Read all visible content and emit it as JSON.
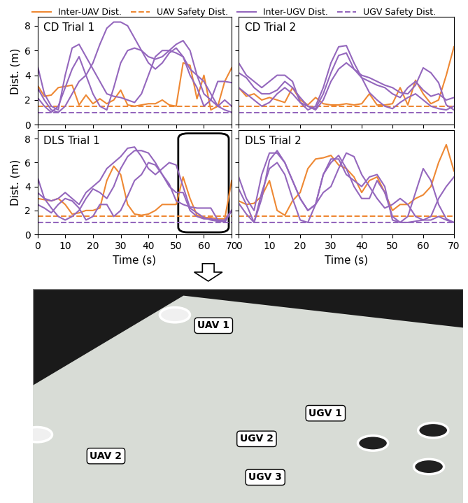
{
  "chart_data": [
    {
      "type": "line",
      "title": "CD Trial 1",
      "y_label": "Dist. (m)",
      "tick_labels": "y",
      "x": [
        0,
        2.5,
        5,
        7.5,
        10,
        12.5,
        15,
        17.5,
        20,
        22.5,
        25,
        27.5,
        30,
        32.5,
        35,
        37.5,
        40,
        42.5,
        45,
        47.5,
        50,
        52.5,
        55,
        57.5,
        60,
        62.5,
        65,
        67.5,
        70
      ],
      "xlim": [
        0,
        70
      ],
      "xticks": [
        0,
        10,
        20,
        30,
        40,
        50,
        60,
        70
      ],
      "ylim": [
        0,
        8.7
      ],
      "yticks": [
        0,
        2,
        4,
        6,
        8
      ],
      "series": [
        {
          "name": "Inter-UAV Dist.",
          "color": "#ee8833",
          "line_style": "solid",
          "values": [
            3.2,
            2.3,
            2.4,
            3.0,
            3.1,
            3.2,
            1.6,
            2.4,
            1.7,
            2.1,
            1.7,
            2.0,
            2.8,
            1.6,
            1.5,
            1.6,
            1.7,
            1.7,
            2.0,
            1.6,
            1.5,
            5.0,
            4.8,
            2.1,
            4.0,
            1.2,
            1.5,
            3.5,
            4.6
          ]
        },
        {
          "name": "UAV Safety Dist.",
          "color": "#ee8833",
          "line_style": "dashed",
          "x": [
            0,
            70
          ],
          "values": [
            1.5,
            1.5
          ]
        },
        {
          "name": "Inter-UGV Dist.",
          "color": "#9467bd",
          "line_style": "solid",
          "values": [
            4.8,
            2.5,
            1.5,
            1.2,
            4.0,
            6.2,
            6.5,
            5.5,
            4.5,
            3.5,
            2.5,
            2.3,
            2.2,
            2.0,
            1.8,
            2.5,
            4.0,
            5.5,
            6.0,
            6.0,
            5.8,
            5.5,
            4.0,
            3.0,
            1.5,
            2.0,
            3.5,
            3.5,
            3.4
          ]
        },
        {
          "name": "Inter-UGV Dist.",
          "color": "#9467bd",
          "line_style": "solid",
          "values": [
            3.0,
            2.0,
            1.2,
            1.0,
            1.5,
            2.5,
            3.5,
            4.0,
            5.0,
            6.5,
            7.8,
            8.3,
            8.3,
            8.0,
            7.0,
            6.0,
            5.5,
            5.3,
            5.5,
            6.0,
            6.5,
            6.8,
            6.0,
            4.0,
            2.5,
            2.0,
            1.5,
            1.2,
            1.0
          ]
        },
        {
          "name": "Inter-UGV Dist.",
          "color": "#9467bd",
          "line_style": "solid",
          "values": [
            2.2,
            1.5,
            1.0,
            1.5,
            3.0,
            4.5,
            5.5,
            4.0,
            2.5,
            1.5,
            1.2,
            3.0,
            5.0,
            6.0,
            6.2,
            6.0,
            5.0,
            4.5,
            5.0,
            5.8,
            6.2,
            5.5,
            4.5,
            4.0,
            3.5,
            2.5,
            1.5,
            2.0,
            1.5
          ]
        },
        {
          "name": "UGV Safety Dist.",
          "color": "#9467bd",
          "line_style": "dashed",
          "x": [
            0,
            70
          ],
          "values": [
            1.0,
            1.0
          ]
        }
      ]
    },
    {
      "type": "line",
      "title": "CD Trial 2",
      "tick_labels": false,
      "x": [
        0,
        2.5,
        5,
        7.5,
        10,
        12.5,
        15,
        17.5,
        20,
        22.5,
        25,
        27.5,
        30,
        32.5,
        35,
        37.5,
        40,
        42.5,
        45,
        47.5,
        50,
        52.5,
        55,
        57.5,
        60,
        62.5,
        65,
        67.5,
        70
      ],
      "xlim": [
        0,
        70
      ],
      "xticks": [
        0,
        10,
        20,
        30,
        40,
        50,
        60,
        70
      ],
      "ylim": [
        0,
        8.7
      ],
      "yticks": [
        0,
        2,
        4,
        6,
        8
      ],
      "series": [
        {
          "name": "Inter-UAV Dist.",
          "color": "#ee8833",
          "line_style": "solid",
          "values": [
            3.0,
            2.3,
            2.5,
            2.0,
            2.2,
            2.0,
            1.8,
            3.0,
            2.0,
            1.6,
            2.2,
            1.7,
            1.6,
            1.6,
            1.7,
            1.6,
            1.7,
            2.5,
            1.6,
            1.6,
            1.7,
            3.0,
            1.6,
            3.6,
            2.5,
            1.7,
            2.0,
            4.0,
            6.3
          ]
        },
        {
          "name": "UAV Safety Dist.",
          "color": "#ee8833",
          "line_style": "dashed",
          "x": [
            0,
            70
          ],
          "values": [
            1.5,
            1.5
          ]
        },
        {
          "name": "Inter-UGV Dist.",
          "color": "#9467bd",
          "line_style": "solid",
          "values": [
            5.0,
            4.0,
            3.5,
            3.0,
            3.5,
            4.0,
            4.0,
            3.5,
            1.8,
            1.2,
            1.5,
            3.0,
            5.0,
            6.3,
            6.4,
            5.0,
            3.8,
            3.5,
            3.2,
            3.0,
            2.5,
            2.2,
            3.0,
            3.5,
            2.8,
            2.3,
            2.5,
            2.0,
            2.2
          ]
        },
        {
          "name": "Inter-UGV Dist.",
          "color": "#9467bd",
          "line_style": "solid",
          "values": [
            4.2,
            3.8,
            3.0,
            2.5,
            2.5,
            2.8,
            3.5,
            3.0,
            2.2,
            1.5,
            1.3,
            2.5,
            4.2,
            5.6,
            5.8,
            4.5,
            4.0,
            3.8,
            3.5,
            3.2,
            3.0,
            2.6,
            2.5,
            3.2,
            4.6,
            4.2,
            3.4,
            1.6,
            1.2
          ]
        },
        {
          "name": "Inter-UGV Dist.",
          "color": "#9467bd",
          "line_style": "solid",
          "values": [
            3.0,
            2.5,
            2.0,
            1.5,
            1.8,
            2.5,
            3.0,
            2.5,
            1.8,
            1.5,
            1.2,
            2.0,
            3.5,
            4.5,
            5.0,
            4.5,
            3.8,
            2.6,
            2.0,
            1.5,
            1.3,
            1.8,
            2.2,
            2.5,
            2.0,
            1.5,
            1.3,
            1.2,
            1.5
          ]
        },
        {
          "name": "UGV Safety Dist.",
          "color": "#9467bd",
          "line_style": "dashed",
          "x": [
            0,
            70
          ],
          "values": [
            1.0,
            1.0
          ]
        }
      ]
    },
    {
      "type": "line",
      "title": "DLS Trial 1",
      "x_label": "Time (s)",
      "y_label": "Dist. (m)",
      "x": [
        0,
        2.5,
        5,
        7.5,
        10,
        12.5,
        15,
        17.5,
        20,
        22.5,
        25,
        27.5,
        30,
        32.5,
        35,
        37.5,
        40,
        42.5,
        45,
        47.5,
        50,
        52.5,
        55,
        57.5,
        60,
        62.5,
        65,
        67.5,
        70
      ],
      "xlim": [
        0,
        70
      ],
      "xticks": [
        0,
        10,
        20,
        30,
        40,
        50,
        60,
        70
      ],
      "ylim": [
        0,
        8.7
      ],
      "yticks": [
        0,
        2,
        4,
        6,
        8
      ],
      "series": [
        {
          "name": "Inter-UAV Dist.",
          "color": "#ee8833",
          "line_style": "solid",
          "values": [
            3.0,
            2.9,
            2.8,
            3.0,
            2.5,
            1.7,
            1.8,
            2.0,
            2.0,
            2.2,
            4.5,
            5.7,
            5.0,
            2.5,
            1.7,
            1.6,
            1.7,
            2.0,
            2.5,
            2.5,
            2.5,
            4.8,
            3.0,
            1.6,
            1.4,
            1.4,
            1.3,
            1.3,
            4.5
          ]
        },
        {
          "name": "UAV Safety Dist.",
          "color": "#ee8833",
          "line_style": "dashed",
          "x": [
            0,
            70
          ],
          "values": [
            1.5,
            1.5
          ]
        },
        {
          "name": "Inter-UGV Dist.",
          "color": "#9467bd",
          "line_style": "solid",
          "values": [
            4.8,
            3.0,
            2.2,
            1.5,
            1.2,
            1.5,
            2.0,
            3.0,
            3.8,
            3.5,
            3.0,
            4.0,
            5.5,
            6.5,
            7.0,
            7.0,
            6.8,
            6.0,
            5.0,
            4.0,
            3.5,
            3.5,
            2.0,
            1.5,
            1.3,
            1.3,
            1.2,
            1.2,
            2.0
          ]
        },
        {
          "name": "Inter-UGV Dist.",
          "color": "#9467bd",
          "line_style": "solid",
          "values": [
            3.5,
            3.0,
            2.8,
            3.0,
            3.5,
            3.0,
            2.5,
            3.5,
            4.0,
            4.5,
            5.5,
            6.0,
            6.5,
            7.2,
            7.3,
            6.5,
            5.5,
            5.0,
            5.5,
            6.0,
            5.8,
            4.0,
            2.2,
            1.8,
            1.4,
            1.2,
            1.1,
            1.1,
            2.0
          ]
        },
        {
          "name": "Inter-UGV Dist.",
          "color": "#9467bd",
          "line_style": "solid",
          "values": [
            2.5,
            2.2,
            1.8,
            2.5,
            3.0,
            2.8,
            2.2,
            1.2,
            1.5,
            2.5,
            2.5,
            1.5,
            2.0,
            3.2,
            4.5,
            5.0,
            6.0,
            5.8,
            5.0,
            4.2,
            2.8,
            2.5,
            2.3,
            2.2,
            2.2,
            2.2,
            1.2,
            1.0,
            2.0
          ]
        },
        {
          "name": "UGV Safety Dist.",
          "color": "#9467bd",
          "line_style": "dashed",
          "x": [
            0,
            70
          ],
          "values": [
            1.0,
            1.0
          ]
        }
      ]
    },
    {
      "type": "line",
      "title": "DLS Trial 2",
      "x_label": "Time (s)",
      "tick_labels": "x",
      "x": [
        0,
        2.5,
        5,
        7.5,
        10,
        12.5,
        15,
        17.5,
        20,
        22.5,
        25,
        27.5,
        30,
        32.5,
        35,
        37.5,
        40,
        42.5,
        45,
        47.5,
        50,
        52.5,
        55,
        57.5,
        60,
        62.5,
        65,
        67.5,
        70
      ],
      "xlim": [
        0,
        70
      ],
      "xticks": [
        0,
        10,
        20,
        30,
        40,
        50,
        60,
        70
      ],
      "ylim": [
        0,
        8.7
      ],
      "yticks": [
        0,
        2,
        4,
        6,
        8
      ],
      "series": [
        {
          "name": "Inter-UAV Dist.",
          "color": "#ee8833",
          "line_style": "solid",
          "values": [
            2.8,
            2.5,
            2.6,
            3.2,
            4.5,
            2.0,
            1.6,
            2.8,
            3.5,
            5.5,
            6.3,
            6.4,
            6.6,
            5.8,
            5.5,
            4.8,
            3.5,
            4.5,
            4.8,
            3.5,
            2.0,
            2.5,
            2.5,
            3.0,
            3.3,
            4.0,
            6.0,
            7.5,
            5.3
          ]
        },
        {
          "name": "UAV Safety Dist.",
          "color": "#ee8833",
          "line_style": "dashed",
          "x": [
            0,
            70
          ],
          "values": [
            1.5,
            1.5
          ]
        },
        {
          "name": "Inter-UGV Dist.",
          "color": "#9467bd",
          "line_style": "solid",
          "values": [
            4.8,
            3.0,
            2.0,
            5.0,
            6.8,
            6.8,
            6.0,
            4.5,
            3.0,
            2.0,
            2.5,
            5.0,
            6.3,
            6.3,
            5.0,
            4.5,
            4.0,
            4.8,
            5.0,
            4.0,
            1.2,
            1.0,
            1.0,
            1.1,
            1.2,
            1.5,
            3.0,
            4.0,
            4.8
          ]
        },
        {
          "name": "Inter-UGV Dist.",
          "color": "#9467bd",
          "line_style": "solid",
          "values": [
            3.8,
            2.5,
            1.0,
            3.5,
            5.5,
            6.0,
            5.0,
            3.0,
            1.2,
            1.0,
            2.5,
            5.0,
            6.0,
            6.6,
            5.5,
            4.0,
            3.0,
            3.0,
            4.5,
            3.5,
            1.5,
            1.0,
            1.5,
            3.5,
            5.5,
            4.5,
            2.5,
            1.3,
            1.0
          ]
        },
        {
          "name": "Inter-UGV Dist.",
          "color": "#9467bd",
          "line_style": "solid",
          "values": [
            2.6,
            1.7,
            1.0,
            3.0,
            6.2,
            7.0,
            6.0,
            4.5,
            3.0,
            2.0,
            2.5,
            3.5,
            4.0,
            5.5,
            6.8,
            6.5,
            5.0,
            4.0,
            3.0,
            2.2,
            2.5,
            3.0,
            2.5,
            1.5,
            1.2,
            1.2,
            1.5,
            1.2,
            1.0
          ]
        },
        {
          "name": "UGV Safety Dist.",
          "color": "#9467bd",
          "line_style": "dashed",
          "x": [
            0,
            70
          ],
          "values": [
            1.0,
            1.0
          ]
        }
      ]
    }
  ],
  "image": {
    "labels": [
      "UAV 1",
      "UAV 2",
      "UGV 1",
      "UGV 2",
      "UGV 3"
    ]
  }
}
